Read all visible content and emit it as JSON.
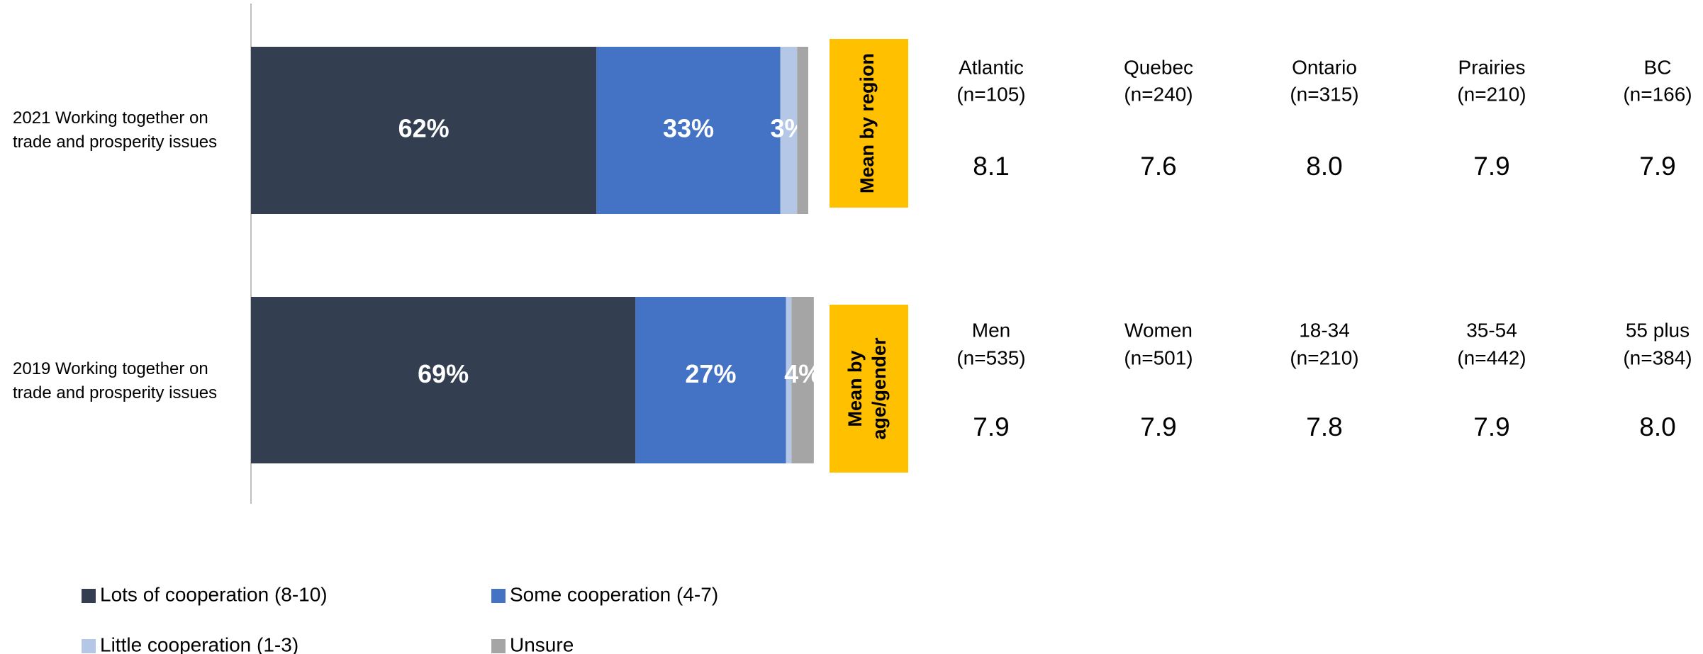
{
  "chart_data": {
    "type": "stacked_bar_horizontal",
    "categories": [
      "2021 Working together on trade and prosperity issues",
      "2019 Working together on trade and prosperity issues"
    ],
    "series": [
      {
        "name": "Lots of cooperation (8-10)",
        "color": "#333f50",
        "values": [
          62,
          69
        ],
        "value_labels": [
          "62%",
          "69%"
        ]
      },
      {
        "name": "Some cooperation (4-7)",
        "color": "#4472c4",
        "values": [
          33,
          27
        ],
        "value_labels": [
          "33%",
          "27%"
        ]
      },
      {
        "name": "Little cooperation (1-3)",
        "color": "#b4c7e7",
        "values": [
          3,
          1
        ],
        "value_labels": [
          "3%",
          null
        ]
      },
      {
        "name": "Unsure",
        "color": "#a5a5a5",
        "values": [
          2,
          4
        ],
        "value_labels": [
          null,
          "4%"
        ]
      }
    ],
    "xlim": [
      0,
      100
    ]
  },
  "tables": [
    {
      "label": "Mean by region",
      "color": "#ffc000",
      "columns": [
        {
          "name": "Atlantic",
          "n": "(n=105)",
          "mean": "8.1"
        },
        {
          "name": "Quebec",
          "n": "(n=240)",
          "mean": "7.6"
        },
        {
          "name": "Ontario",
          "n": "(n=315)",
          "mean": "8.0"
        },
        {
          "name": "Prairies",
          "n": "(n=210)",
          "mean": "7.9"
        },
        {
          "name": "BC",
          "n": "(n=166)",
          "mean": "7.9"
        }
      ]
    },
    {
      "label": "Mean by age/gender",
      "color": "#ffc000",
      "columns": [
        {
          "name": "Men",
          "n": "(n=535)",
          "mean": "7.9"
        },
        {
          "name": "Women",
          "n": "(n=501)",
          "mean": "7.9"
        },
        {
          "name": "18-34",
          "n": "(n=210)",
          "mean": "7.8"
        },
        {
          "name": "35-54",
          "n": "(n=442)",
          "mean": "7.9"
        },
        {
          "name": "55 plus",
          "n": "(n=384)",
          "mean": "8.0"
        }
      ]
    }
  ]
}
